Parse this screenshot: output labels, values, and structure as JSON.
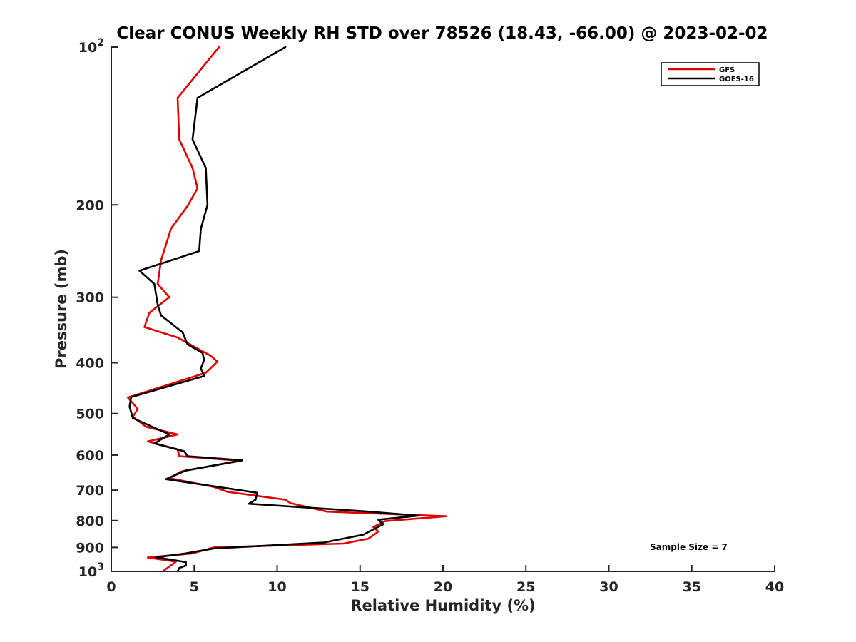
{
  "chart_data": {
    "type": "line",
    "title": "Clear CONUS Weekly RH STD over 78526 (18.43, -66.00) @ 2023-02-02",
    "xlabel": "Relative Humidity (%)",
    "ylabel": "Pressure (mb)",
    "xlim": [
      0,
      40
    ],
    "ylim": [
      100,
      1000
    ],
    "y_scale": "log",
    "y_reversed": true,
    "grid": false,
    "legend_position": "top-right",
    "x_ticks": [
      "0",
      "5",
      "10",
      "15",
      "20",
      "25",
      "30",
      "35",
      "40"
    ],
    "y_ticks": [
      {
        "value": 100,
        "base": "10",
        "exp": "2"
      },
      {
        "value": 200,
        "label": "200"
      },
      {
        "value": 300,
        "label": "300"
      },
      {
        "value": 400,
        "label": "400"
      },
      {
        "value": 500,
        "label": "500"
      },
      {
        "value": 600,
        "label": "600"
      },
      {
        "value": 700,
        "label": "700"
      },
      {
        "value": 800,
        "label": "800"
      },
      {
        "value": 900,
        "label": "900"
      },
      {
        "value": 1000,
        "base": "10",
        "exp": "3"
      }
    ],
    "annotation": "Sample Size = 7",
    "series": [
      {
        "name": "GFS",
        "color": "#e00000",
        "points": [
          [
            6.5,
            100
          ],
          [
            4.0,
            125
          ],
          [
            4.1,
            150
          ],
          [
            4.9,
            170
          ],
          [
            5.2,
            186
          ],
          [
            4.6,
            201
          ],
          [
            3.6,
            222
          ],
          [
            3.0,
            255
          ],
          [
            2.8,
            283
          ],
          [
            3.5,
            300
          ],
          [
            2.3,
            321
          ],
          [
            2.0,
            342
          ],
          [
            4.0,
            358
          ],
          [
            6.0,
            388
          ],
          [
            6.4,
            398
          ],
          [
            5.7,
            418
          ],
          [
            1.0,
            466
          ],
          [
            1.6,
            490
          ],
          [
            1.3,
            507
          ],
          [
            2.1,
            530
          ],
          [
            4.0,
            548
          ],
          [
            2.2,
            565
          ],
          [
            4.0,
            585
          ],
          [
            4.1,
            603
          ],
          [
            7.8,
            615
          ],
          [
            4.2,
            645
          ],
          [
            3.5,
            664
          ],
          [
            6.2,
            690
          ],
          [
            7.0,
            705
          ],
          [
            10.5,
            730
          ],
          [
            10.8,
            741
          ],
          [
            13.0,
            769
          ],
          [
            20.2,
            785
          ],
          [
            16.5,
            802
          ],
          [
            15.8,
            823
          ],
          [
            16.1,
            840
          ],
          [
            15.5,
            866
          ],
          [
            14.0,
            885
          ],
          [
            6.2,
            900
          ],
          [
            4.9,
            924
          ],
          [
            2.2,
            941
          ],
          [
            3.9,
            958
          ],
          [
            3.1,
            1000
          ]
        ]
      },
      {
        "name": "GOES-16",
        "color": "#000000",
        "points": [
          [
            10.5,
            100
          ],
          [
            5.2,
            125
          ],
          [
            4.9,
            150
          ],
          [
            5.7,
            170
          ],
          [
            5.8,
            200
          ],
          [
            5.4,
            222
          ],
          [
            5.3,
            245
          ],
          [
            1.7,
            267
          ],
          [
            2.6,
            283
          ],
          [
            2.8,
            310
          ],
          [
            3.0,
            325
          ],
          [
            4.3,
            350
          ],
          [
            4.6,
            369
          ],
          [
            5.5,
            383
          ],
          [
            5.6,
            395
          ],
          [
            5.4,
            410
          ],
          [
            5.6,
            424
          ],
          [
            1.2,
            465
          ],
          [
            1.1,
            485
          ],
          [
            1.3,
            510
          ],
          [
            3.5,
            548
          ],
          [
            2.6,
            570
          ],
          [
            4.4,
            590
          ],
          [
            4.6,
            603
          ],
          [
            7.9,
            614
          ],
          [
            4.5,
            642
          ],
          [
            3.3,
            667
          ],
          [
            8.8,
            708
          ],
          [
            8.7,
            730
          ],
          [
            8.3,
            743
          ],
          [
            15.5,
            769
          ],
          [
            18.5,
            783
          ],
          [
            16.1,
            797
          ],
          [
            16.4,
            813
          ],
          [
            15.2,
            851
          ],
          [
            12.8,
            881
          ],
          [
            6.2,
            904
          ],
          [
            4.4,
            925
          ],
          [
            2.7,
            940
          ],
          [
            4.5,
            960
          ],
          [
            4.5,
            975
          ],
          [
            4.1,
            985
          ],
          [
            4.0,
            1000
          ]
        ]
      }
    ]
  }
}
